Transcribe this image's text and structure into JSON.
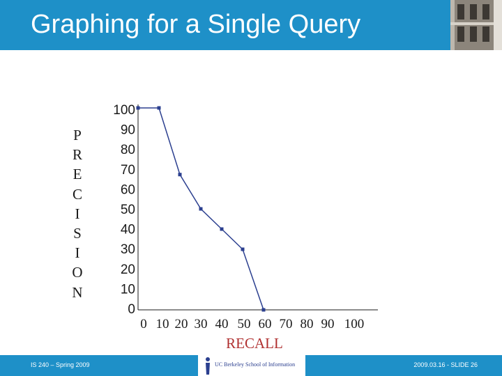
{
  "slide": {
    "title": "Graphing for a Single Query"
  },
  "footer": {
    "left": "IS 240 – Spring 2009",
    "right": "2009.03.16 - SLIDE 26",
    "logo_text": "UC Berkeley School of Information"
  },
  "colors": {
    "header": "#1e90c8",
    "series": "#2b3f8f",
    "xlabel": "#b03030"
  },
  "chart_data": {
    "type": "line",
    "xlabel": "RECALL",
    "ylabel_letters": [
      "P",
      "R",
      "E",
      "C",
      "I",
      "S",
      "I",
      "O",
      "N"
    ],
    "xlim": [
      0,
      100
    ],
    "ylim": [
      0,
      100
    ],
    "x_ticks": [
      "0",
      "10",
      "20",
      "30",
      "40",
      "50",
      "60",
      "70",
      "80",
      "90",
      "100"
    ],
    "y_ticks": [
      "100",
      "90",
      "80",
      "70",
      "60",
      "50",
      "40",
      "30",
      "20",
      "10",
      "0"
    ],
    "grid": false,
    "series": [
      {
        "points": [
          {
            "x": 0,
            "y": 100
          },
          {
            "x": 10,
            "y": 100
          },
          {
            "x": 20,
            "y": 67
          },
          {
            "x": 30,
            "y": 50
          },
          {
            "x": 40,
            "y": 40
          },
          {
            "x": 50,
            "y": 30
          },
          {
            "x": 60,
            "y": 0
          }
        ]
      }
    ]
  }
}
